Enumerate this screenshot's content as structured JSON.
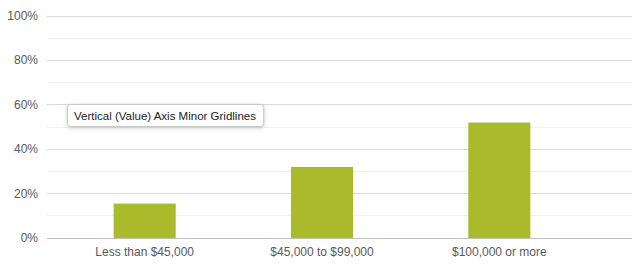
{
  "chart_data": {
    "type": "bar",
    "categories": [
      "Less than $45,000",
      "$45,000 to $99,000",
      "$100,000 or more"
    ],
    "values": [
      15.5,
      32,
      52
    ],
    "color": "#a9ba2b",
    "ylim": [
      0,
      100
    ],
    "yticks": [
      {
        "value": 0,
        "label": "0%"
      },
      {
        "value": 20,
        "label": "20%"
      },
      {
        "value": 40,
        "label": "40%"
      },
      {
        "value": 60,
        "label": "60%"
      },
      {
        "value": 80,
        "label": "80%"
      },
      {
        "value": 100,
        "label": "100%"
      }
    ],
    "grid": true,
    "annotations": [
      "Vertical (Value) Axis Minor Gridlines"
    ]
  }
}
